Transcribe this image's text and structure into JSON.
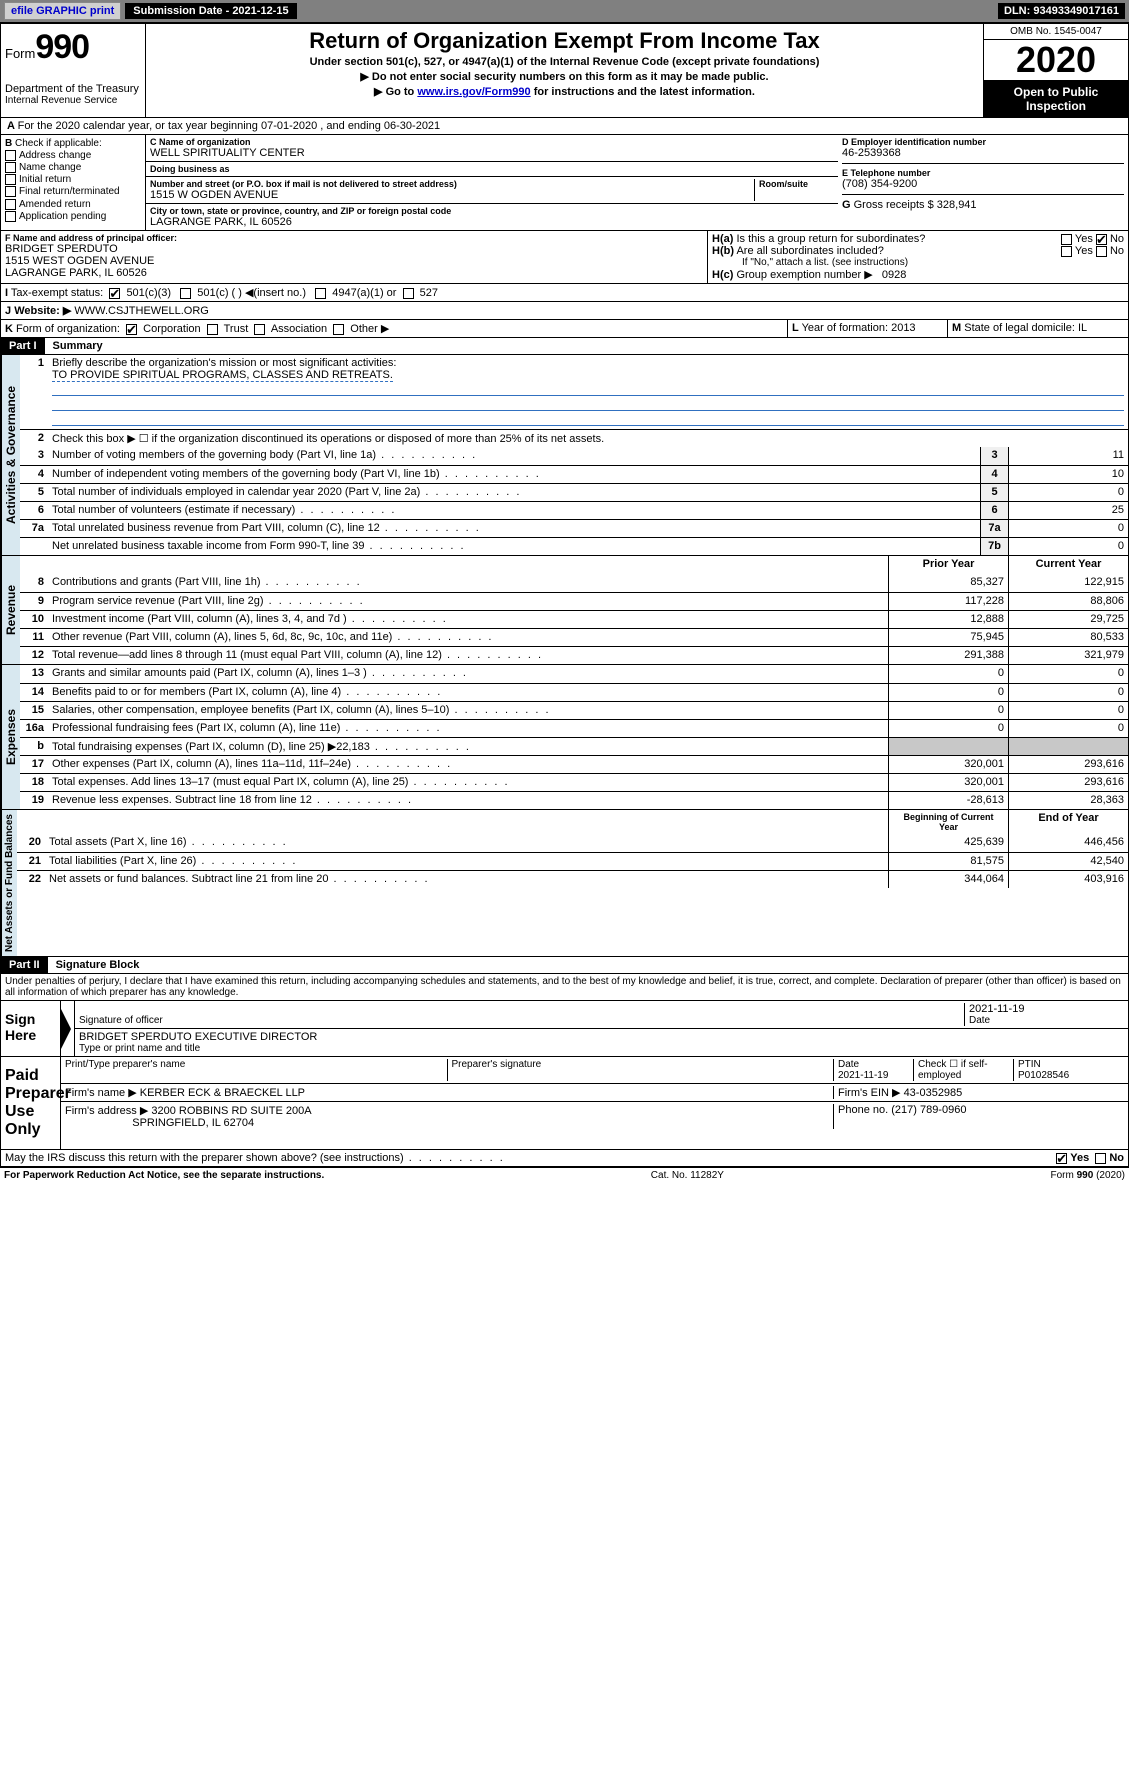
{
  "topbar": {
    "efile": "efile GRAPHIC print",
    "sub_label": "Submission Date - 2021-12-15",
    "dln": "DLN: 93493349017161"
  },
  "header": {
    "form_word": "Form",
    "form_num": "990",
    "dept1": "Department of the Treasury",
    "dept2": "Internal Revenue Service",
    "title": "Return of Organization Exempt From Income Tax",
    "sub1": "Under section 501(c), 527, or 4947(a)(1) of the Internal Revenue Code (except private foundations)",
    "sub2": "Do not enter social security numbers on this form as it may be made public.",
    "sub3_pre": "Go to ",
    "sub3_link": "www.irs.gov/Form990",
    "sub3_post": " for instructions and the latest information.",
    "omb": "OMB No. 1545-0047",
    "year": "2020",
    "open": "Open to Public Inspection"
  },
  "A": {
    "text": "For the 2020 calendar year, or tax year beginning 07-01-2020    , and ending 06-30-2021"
  },
  "B": {
    "title": "Check if applicable:",
    "opts": [
      "Address change",
      "Name change",
      "Initial return",
      "Final return/terminated",
      "Amended return",
      "Application pending"
    ]
  },
  "C": {
    "name_lbl": "Name of organization",
    "name": "WELL SPIRITUALITY CENTER",
    "dba_lbl": "Doing business as",
    "dba": "",
    "addr_lbl": "Number and street (or P.O. box if mail is not delivered to street address)",
    "room_lbl": "Room/suite",
    "addr": "1515 W OGDEN AVENUE",
    "city_lbl": "City or town, state or province, country, and ZIP or foreign postal code",
    "city": "LAGRANGE PARK, IL  60526"
  },
  "D": {
    "lbl": "Employer identification number",
    "val": "46-2539368"
  },
  "E": {
    "lbl": "Telephone number",
    "val": "(708) 354-9200"
  },
  "G": {
    "lbl": "Gross receipts $",
    "val": "328,941"
  },
  "F": {
    "lbl": "Name and address of principal officer:",
    "name": "BRIDGET SPERDUTO",
    "addr1": "1515 WEST OGDEN AVENUE",
    "addr2": "LAGRANGE PARK, IL  60526"
  },
  "H": {
    "a": "Is this a group return for subordinates?",
    "b": "Are all subordinates included?",
    "note": "If \"No,\" attach a list. (see instructions)",
    "c": "Group exemption number ▶",
    "c_val": "0928",
    "yes": "Yes",
    "no": "No"
  },
  "I": {
    "lbl": "Tax-exempt status:",
    "o1": "501(c)(3)",
    "o2": "501(c) (  ) ◀(insert no.)",
    "o3": "4947(a)(1) or",
    "o4": "527"
  },
  "J": {
    "lbl": "Website: ▶",
    "val": "WWW.CSJTHEWELL.ORG"
  },
  "K": {
    "lbl": "Form of organization:",
    "o1": "Corporation",
    "o2": "Trust",
    "o3": "Association",
    "o4": "Other ▶"
  },
  "L": {
    "lbl": "Year of formation:",
    "val": "2013"
  },
  "M": {
    "lbl": "State of legal domicile:",
    "val": "IL"
  },
  "partI": {
    "num": "Part I",
    "title": "Summary",
    "l1": "Briefly describe the organization's mission or most significant activities:",
    "l1_val": "TO PROVIDE SPIRITUAL PROGRAMS, CLASSES AND RETREATS.",
    "l2": "Check this box ▶ ☐  if the organization discontinued its operations or disposed of more than 25% of its net assets.",
    "rows_gov": [
      {
        "n": "3",
        "t": "Number of voting members of the governing body (Part VI, line 1a)",
        "b": "3",
        "v": "11"
      },
      {
        "n": "4",
        "t": "Number of independent voting members of the governing body (Part VI, line 1b)",
        "b": "4",
        "v": "10"
      },
      {
        "n": "5",
        "t": "Total number of individuals employed in calendar year 2020 (Part V, line 2a)",
        "b": "5",
        "v": "0"
      },
      {
        "n": "6",
        "t": "Total number of volunteers (estimate if necessary)",
        "b": "6",
        "v": "25"
      },
      {
        "n": "7a",
        "t": "Total unrelated business revenue from Part VIII, column (C), line 12",
        "b": "7a",
        "v": "0"
      },
      {
        "n": "",
        "t": "Net unrelated business taxable income from Form 990-T, line 39",
        "b": "7b",
        "v": "0"
      }
    ],
    "hdr_prior": "Prior Year",
    "hdr_curr": "Current Year",
    "rows_rev": [
      {
        "n": "8",
        "t": "Contributions and grants (Part VIII, line 1h)",
        "p": "85,327",
        "c": "122,915"
      },
      {
        "n": "9",
        "t": "Program service revenue (Part VIII, line 2g)",
        "p": "117,228",
        "c": "88,806"
      },
      {
        "n": "10",
        "t": "Investment income (Part VIII, column (A), lines 3, 4, and 7d )",
        "p": "12,888",
        "c": "29,725"
      },
      {
        "n": "11",
        "t": "Other revenue (Part VIII, column (A), lines 5, 6d, 8c, 9c, 10c, and 11e)",
        "p": "75,945",
        "c": "80,533"
      },
      {
        "n": "12",
        "t": "Total revenue—add lines 8 through 11 (must equal Part VIII, column (A), line 12)",
        "p": "291,388",
        "c": "321,979"
      }
    ],
    "rows_exp": [
      {
        "n": "13",
        "t": "Grants and similar amounts paid (Part IX, column (A), lines 1–3 )",
        "p": "0",
        "c": "0"
      },
      {
        "n": "14",
        "t": "Benefits paid to or for members (Part IX, column (A), line 4)",
        "p": "0",
        "c": "0"
      },
      {
        "n": "15",
        "t": "Salaries, other compensation, employee benefits (Part IX, column (A), lines 5–10)",
        "p": "0",
        "c": "0"
      },
      {
        "n": "16a",
        "t": "Professional fundraising fees (Part IX, column (A), line 11e)",
        "p": "0",
        "c": "0"
      },
      {
        "n": "b",
        "t": "Total fundraising expenses (Part IX, column (D), line 25) ▶22,183",
        "p": "",
        "c": "",
        "gray": true
      },
      {
        "n": "17",
        "t": "Other expenses (Part IX, column (A), lines 11a–11d, 11f–24e)",
        "p": "320,001",
        "c": "293,616"
      },
      {
        "n": "18",
        "t": "Total expenses. Add lines 13–17 (must equal Part IX, column (A), line 25)",
        "p": "320,001",
        "c": "293,616"
      },
      {
        "n": "19",
        "t": "Revenue less expenses. Subtract line 18 from line 12",
        "p": "-28,613",
        "c": "28,363"
      }
    ],
    "hdr_beg": "Beginning of Current Year",
    "hdr_end": "End of Year",
    "rows_net": [
      {
        "n": "20",
        "t": "Total assets (Part X, line 16)",
        "p": "425,639",
        "c": "446,456"
      },
      {
        "n": "21",
        "t": "Total liabilities (Part X, line 26)",
        "p": "81,575",
        "c": "42,540"
      },
      {
        "n": "22",
        "t": "Net assets or fund balances. Subtract line 21 from line 20",
        "p": "344,064",
        "c": "403,916"
      }
    ],
    "vert_gov": "Activities & Governance",
    "vert_rev": "Revenue",
    "vert_exp": "Expenses",
    "vert_net": "Net Assets or Fund Balances"
  },
  "partII": {
    "num": "Part II",
    "title": "Signature Block",
    "decl": "Under penalties of perjury, I declare that I have examined this return, including accompanying schedules and statements, and to the best of my knowledge and belief, it is true, correct, and complete. Declaration of preparer (other than officer) is based on all information of which preparer has any knowledge.",
    "sign_here": "Sign Here",
    "sig_officer": "Signature of officer",
    "sig_date": "2021-11-19",
    "date_lbl": "Date",
    "name_title": "BRIDGET SPERDUTO  EXECUTIVE DIRECTOR",
    "type_lbl": "Type or print name and title",
    "paid": "Paid Preparer Use Only",
    "hdr_prep": "Print/Type preparer's name",
    "hdr_sig": "Preparer's signature",
    "hdr_date": "Date",
    "prep_date": "2021-11-19",
    "check_self": "Check ☐ if self-employed",
    "ptin_lbl": "PTIN",
    "ptin": "P01028546",
    "firm_name_lbl": "Firm's name    ▶",
    "firm_name": "KERBER ECK & BRAECKEL LLP",
    "firm_ein_lbl": "Firm's EIN ▶",
    "firm_ein": "43-0352985",
    "firm_addr_lbl": "Firm's address ▶",
    "firm_addr1": "3200 ROBBINS RD SUITE 200A",
    "firm_addr2": "SPRINGFIELD, IL  62704",
    "phone_lbl": "Phone no.",
    "phone": "(217) 789-0960",
    "discuss": "May the IRS discuss this return with the preparer shown above? (see instructions)",
    "yes": "Yes",
    "no": "No"
  },
  "footer": {
    "left": "For Paperwork Reduction Act Notice, see the separate instructions.",
    "mid": "Cat. No. 11282Y",
    "right": "Form 990 (2020)"
  }
}
